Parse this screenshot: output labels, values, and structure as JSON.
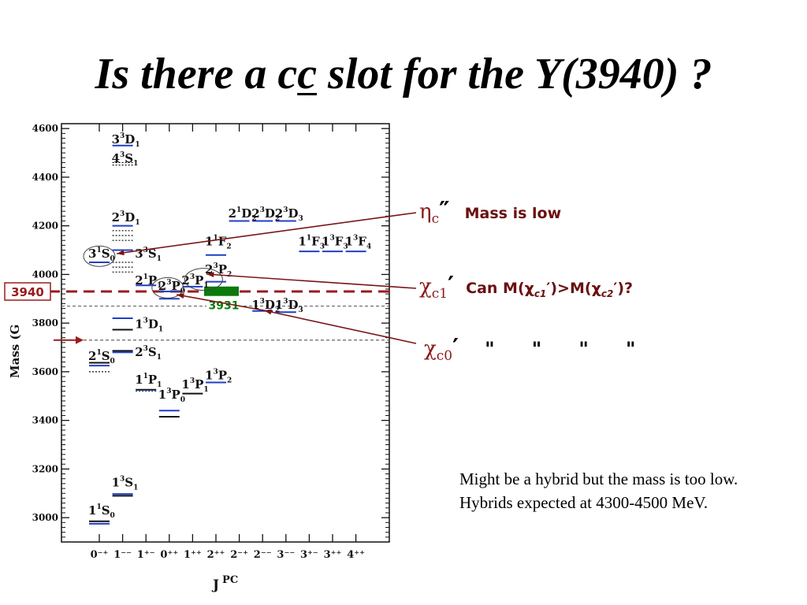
{
  "slide": {
    "title_pre": "Is there a c",
    "title_underlined": "c",
    "title_post": " slot for the Y(3940) ?",
    "hybrid_note": "Might be a hybrid but the mass is too low. Hybrids expected at 4300-4500 MeV."
  },
  "annotations": {
    "eta": {
      "symbol": "η",
      "sub": "c",
      "prime": "″",
      "note": "Mass is low"
    },
    "chi1": {
      "symbol": "χ",
      "sub": "c1",
      "prime": "′",
      "note_pre": "Can M(",
      "note_chi1": "c1",
      "note_mid": "′)>M(",
      "note_chi2": "c2",
      "note_post": "′)?",
      "note_symbol": "χ"
    },
    "chi0": {
      "symbol": "χ",
      "sub": "c0",
      "prime": "′",
      "quotes": [
        "\"",
        "\"",
        "\"",
        "\""
      ]
    },
    "marker_3940": "3940",
    "marker_3931": "3931"
  },
  "colors": {
    "accent_red": "#8b1a1a",
    "dashed_red": "#9b1b1b",
    "blue": "#1f3fc8",
    "green": "#0b7a0b"
  },
  "chart_data": {
    "type": "scatter",
    "title": "",
    "xlabel": "J PC",
    "ylabel": "Mass (G",
    "ylim": [
      2900,
      4620
    ],
    "yticks": [
      3000,
      3200,
      3400,
      3600,
      3800,
      4000,
      4200,
      4400,
      4600
    ],
    "categories": [
      "0⁻⁺",
      "1⁻⁻",
      "1⁺⁻",
      "0⁺⁺",
      "1⁺⁺",
      "2⁺⁺",
      "2⁻⁺",
      "2⁻⁻",
      "3⁻⁻",
      "3⁺⁻",
      "3⁺⁺",
      "4⁺⁺"
    ],
    "reference_lines": [
      {
        "label": "3940",
        "mass": 3930,
        "style": "dashed",
        "color": "#9b1b1b"
      },
      {
        "mass": 3870,
        "style": "dotted",
        "color": "#666666"
      },
      {
        "mass": 3730,
        "style": "dotted",
        "color": "#666666"
      }
    ],
    "highlight_band": {
      "label": "3931",
      "mass": 3931,
      "category": "2⁺⁺",
      "color": "#0b7a0b"
    },
    "state_labels": [
      {
        "n": "3",
        "s": "3",
        "L": "D",
        "j": "1",
        "cat": 1,
        "mass": 4555
      },
      {
        "n": "4",
        "s": "3",
        "L": "S",
        "j": "1",
        "cat": 1,
        "mass": 4478
      },
      {
        "n": "2",
        "s": "3",
        "L": "D",
        "j": "1",
        "cat": 1,
        "mass": 4235
      },
      {
        "n": "3",
        "s": "1",
        "L": "S",
        "j": "0",
        "cat": 0,
        "mass": 4085
      },
      {
        "n": "3",
        "s": "3",
        "L": "S",
        "j": "1",
        "cat": 2,
        "mass": 4085
      },
      {
        "n": "2",
        "s": "1",
        "L": "D",
        "j": "2",
        "cat": 6,
        "mass": 4250
      },
      {
        "n": "2",
        "s": "3",
        "L": "D",
        "j": "2",
        "cat": 7,
        "mass": 4250
      },
      {
        "n": "2",
        "s": "3",
        "L": "D",
        "j": "3",
        "cat": 8,
        "mass": 4250
      },
      {
        "n": "1",
        "s": "1",
        "L": "F",
        "j": "2",
        "cat": 5,
        "mass": 4135
      },
      {
        "n": "1",
        "s": "1",
        "L": "F",
        "j": "3",
        "cat": 9,
        "mass": 4135
      },
      {
        "n": "1",
        "s": "3",
        "L": "F",
        "j": "3",
        "cat": 10,
        "mass": 4135
      },
      {
        "n": "1",
        "s": "3",
        "L": "F",
        "j": "4",
        "cat": 11,
        "mass": 4135
      },
      {
        "n": "2",
        "s": "1",
        "L": "P",
        "j": "1",
        "cat": 2,
        "mass": 3975
      },
      {
        "n": "2",
        "s": "3",
        "L": "P",
        "j": "0",
        "cat": 3,
        "mass": 3952
      },
      {
        "n": "2",
        "s": "3",
        "L": "P",
        "j": "1",
        "cat": 4,
        "mass": 3975
      },
      {
        "n": "2",
        "s": "3",
        "L": "P",
        "j": "2",
        "cat": 5,
        "mass": 4020
      },
      {
        "n": "1",
        "s": "3",
        "L": "D",
        "j": "1",
        "cat": 2,
        "mass": 3795
      },
      {
        "n": "1",
        "s": "3",
        "L": "D",
        "j": "2",
        "cat": 7,
        "mass": 3875
      },
      {
        "n": "1",
        "s": "3",
        "L": "D",
        "j": "3",
        "cat": 8,
        "mass": 3875
      },
      {
        "n": "2",
        "s": "1",
        "L": "S",
        "j": "0",
        "cat": 0,
        "mass": 3665
      },
      {
        "n": "2",
        "s": "3",
        "L": "S",
        "j": "1",
        "cat": 2,
        "mass": 3680
      },
      {
        "n": "1",
        "s": "1",
        "L": "P",
        "j": "1",
        "cat": 2,
        "mass": 3568
      },
      {
        "n": "1",
        "s": "3",
        "L": "P",
        "j": "1",
        "cat": 4,
        "mass": 3548
      },
      {
        "n": "1",
        "s": "3",
        "L": "P",
        "j": "2",
        "cat": 5,
        "mass": 3585
      },
      {
        "n": "1",
        "s": "3",
        "L": "P",
        "j": "0",
        "cat": 3,
        "mass": 3505
      },
      {
        "n": "1",
        "s": "3",
        "L": "S",
        "j": "1",
        "cat": 1,
        "mass": 3145
      },
      {
        "n": "1",
        "s": "1",
        "L": "S",
        "j": "0",
        "cat": 0,
        "mass": 3030
      }
    ],
    "levels": [
      {
        "cat": 1,
        "mass": 4530,
        "color": "blue"
      },
      {
        "cat": 1,
        "mass": 4460,
        "color": "black",
        "style": "dotted"
      },
      {
        "cat": 1,
        "mass": 4450,
        "color": "black",
        "style": "dotted"
      },
      {
        "cat": 1,
        "mass": 4200,
        "color": "blue"
      },
      {
        "cat": 1,
        "mass": 4180,
        "color": "black",
        "style": "dotted"
      },
      {
        "cat": 1,
        "mass": 4160,
        "color": "black",
        "style": "dotted"
      },
      {
        "cat": 1,
        "mass": 4140,
        "color": "black",
        "style": "dotted"
      },
      {
        "cat": 1,
        "mass": 4100,
        "color": "blue"
      },
      {
        "cat": 1,
        "mass": 4050,
        "color": "black",
        "style": "dotted"
      },
      {
        "cat": 1,
        "mass": 4030,
        "color": "black",
        "style": "dotted"
      },
      {
        "cat": 1,
        "mass": 4010,
        "color": "black",
        "style": "dotted"
      },
      {
        "cat": 0,
        "mass": 4050,
        "color": "blue"
      },
      {
        "cat": 2,
        "mass": 3955,
        "color": "blue"
      },
      {
        "cat": 3,
        "mass": 3930,
        "color": "blue"
      },
      {
        "cat": 3,
        "mass": 3900,
        "color": "blue"
      },
      {
        "cat": 4,
        "mass": 3950,
        "color": "blue"
      },
      {
        "cat": 5,
        "mass": 4080,
        "color": "blue"
      },
      {
        "cat": 5,
        "mass": 3970,
        "color": "blue"
      },
      {
        "cat": 6,
        "mass": 4220,
        "color": "blue"
      },
      {
        "cat": 7,
        "mass": 4220,
        "color": "blue"
      },
      {
        "cat": 8,
        "mass": 4220,
        "color": "blue"
      },
      {
        "cat": 9,
        "mass": 4095,
        "color": "blue"
      },
      {
        "cat": 10,
        "mass": 4095,
        "color": "blue"
      },
      {
        "cat": 11,
        "mass": 4095,
        "color": "blue"
      },
      {
        "cat": 7,
        "mass": 3850,
        "color": "blue"
      },
      {
        "cat": 8,
        "mass": 3845,
        "color": "blue"
      },
      {
        "cat": 1,
        "mass": 3820,
        "color": "blue"
      },
      {
        "cat": 1,
        "mass": 3773,
        "color": "black"
      },
      {
        "cat": 1,
        "mass": 3686,
        "color": "black"
      },
      {
        "cat": 1,
        "mass": 3680,
        "color": "blue"
      },
      {
        "cat": 0,
        "mass": 3637,
        "color": "black"
      },
      {
        "cat": 0,
        "mass": 3625,
        "color": "blue"
      },
      {
        "cat": 0,
        "mass": 3600,
        "color": "black",
        "style": "dotted"
      },
      {
        "cat": 2,
        "mass": 3526,
        "color": "black"
      },
      {
        "cat": 2,
        "mass": 3520,
        "color": "blue",
        "style": "dotted"
      },
      {
        "cat": 3,
        "mass": 3440,
        "color": "blue"
      },
      {
        "cat": 3,
        "mass": 3415,
        "color": "black"
      },
      {
        "cat": 4,
        "mass": 3510,
        "color": "black"
      },
      {
        "cat": 5,
        "mass": 3556,
        "color": "blue"
      },
      {
        "cat": 1,
        "mass": 3097,
        "color": "blue"
      },
      {
        "cat": 1,
        "mass": 3090,
        "color": "black"
      },
      {
        "cat": 0,
        "mass": 2985,
        "color": "black"
      },
      {
        "cat": 0,
        "mass": 2975,
        "color": "blue"
      }
    ]
  }
}
